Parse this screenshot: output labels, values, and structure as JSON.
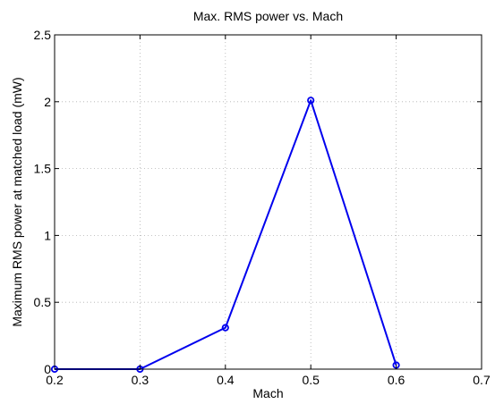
{
  "chart_data": {
    "type": "line",
    "title": "Max. RMS power vs. Mach",
    "xlabel": "Mach",
    "ylabel": "Maximum RMS power at matched load (mW)",
    "xlim": [
      0.2,
      0.7
    ],
    "ylim": [
      0,
      2.5
    ],
    "xticks": [
      "0.2",
      "0.3",
      "0.4",
      "0.5",
      "0.6",
      "0.7"
    ],
    "yticks": [
      "0",
      "0.5",
      "1",
      "1.5",
      "2",
      "2.5"
    ],
    "grid": true,
    "series": [
      {
        "x": [
          0.2,
          0.3,
          0.4,
          0.5,
          0.6
        ],
        "y": [
          0.0,
          0.0,
          0.31,
          2.01,
          0.03
        ],
        "color": "#0000ee",
        "marker": "circle"
      }
    ]
  }
}
